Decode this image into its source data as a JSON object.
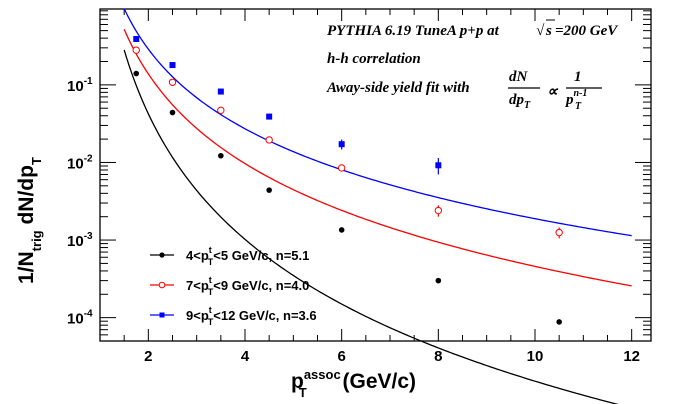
{
  "chart_data": {
    "type": "scatter",
    "title": "",
    "xlabel": {
      "main": "p",
      "sub": "T",
      "sup": "assoc",
      "unit": " (GeV/c)"
    },
    "ylabel": {
      "a": "1/N",
      "a_sub": "trig",
      "b": " dN/dp",
      "b_sub": "T"
    },
    "xlim": [
      1.0,
      12.4
    ],
    "ylim": [
      5e-05,
      0.95
    ],
    "yscale": "log",
    "x_ticks": [
      2,
      4,
      6,
      8,
      10,
      12
    ],
    "x_tick_labels": [
      "2",
      "4",
      "6",
      "8",
      "10",
      "12"
    ],
    "y_ticks": [
      0.0001,
      0.001,
      0.01,
      0.1
    ],
    "y_tick_labels": [
      {
        "base": "10",
        "exp": "-4"
      },
      {
        "base": "10",
        "exp": "-3"
      },
      {
        "base": "10",
        "exp": "-2"
      },
      {
        "base": "10",
        "exp": "-1"
      }
    ],
    "annotations": {
      "line1_prefix": "PYTHIA 6.19 TuneA p+p at",
      "sqrt": "√",
      "line1_s": "s",
      "line1_suffix": "=200 GeV",
      "line2": "h-h correlation",
      "line3_prefix": "Away-side yield fit with",
      "frac_num": "dN",
      "frac_den": "dp",
      "frac_den_sub": "T",
      "propto": "∝",
      "frac2_num": "1",
      "frac2_den": "p",
      "frac2_den_sup": "n-1",
      "frac2_den_sub": "T"
    },
    "series": [
      {
        "label": {
          "pre": "4<p",
          "sup": "t",
          "sub": "T",
          "post": "<5 GeV/c,  n=5.1"
        },
        "color": "#000000",
        "marker": "filled-circle",
        "x": [
          1.75,
          2.5,
          3.5,
          4.5,
          6.0,
          8.0,
          10.5
        ],
        "y": [
          0.14,
          0.044,
          0.0122,
          0.0044,
          0.00135,
          0.0003,
          8.8e-05
        ],
        "err": [
          0,
          0,
          0,
          0,
          0,
          0,
          0
        ],
        "fit": {
          "amp": 0.145,
          "n": 5.1,
          "x0": 0.65
        }
      },
      {
        "label": {
          "pre": "7<p",
          "sup": "t",
          "sub": "T",
          "post": "<9 GeV/c,  n=4.0"
        },
        "color": "#ff0000",
        "marker": "open-circle",
        "x": [
          1.75,
          2.5,
          3.5,
          4.5,
          6.0,
          8.0,
          10.5
        ],
        "y": [
          0.28,
          0.108,
          0.047,
          0.0195,
          0.0085,
          0.0024,
          0.00125
        ],
        "err": [
          0,
          0,
          0,
          0,
          0,
          0.0004,
          0.0002
        ],
        "fit": {
          "amp": 0.38,
          "n": 4.0,
          "x0": 0.6
        }
      },
      {
        "label": {
          "pre": "9<p",
          "sup": "t",
          "sub": "T",
          "post": "<12 GeV/c, n=3.6"
        },
        "color": "#0000ff",
        "marker": "filled-square",
        "x": [
          1.75,
          2.5,
          3.5,
          4.5,
          6.0,
          8.0
        ],
        "y": [
          0.39,
          0.18,
          0.082,
          0.039,
          0.0172,
          0.0092
        ],
        "err": [
          0,
          0,
          0,
          0,
          0.0025,
          0.0022
        ],
        "fit": {
          "amp": 0.63,
          "n": 3.6,
          "x0": 0.65
        }
      }
    ]
  }
}
